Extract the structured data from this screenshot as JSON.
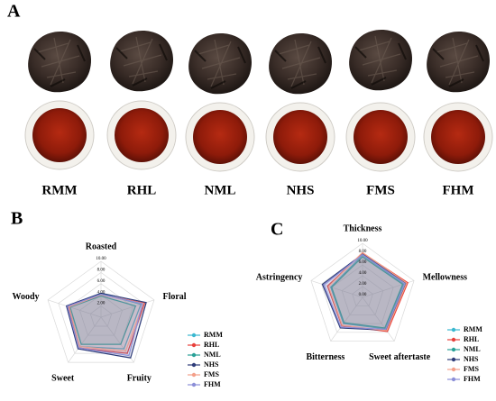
{
  "panel_a": {
    "label": "A",
    "samples": [
      "RMM",
      "RHL",
      "NML",
      "NHS",
      "FMS",
      "FHM"
    ]
  },
  "chart_data": [
    {
      "type": "radar",
      "panel": "B",
      "categories": [
        "Roasted",
        "Floral",
        "Fruity",
        "Sweet",
        "Woody"
      ],
      "ylim": [
        0,
        10
      ],
      "yticks": [
        {
          "value": 2,
          "label": "2.00"
        },
        {
          "value": 4,
          "label": "4.00"
        },
        {
          "value": 6,
          "label": "6.00"
        },
        {
          "value": 8,
          "label": "8.00"
        },
        {
          "value": 10,
          "label": "10.00"
        }
      ],
      "grid": true,
      "legend": "lower right",
      "series": [
        {
          "name": "RMM",
          "color": "#3bb8d0",
          "values": [
            4.2,
            7.5,
            7.0,
            6.5,
            6.0
          ]
        },
        {
          "name": "RHL",
          "color": "#e8413c",
          "values": [
            4.0,
            8.2,
            8.0,
            6.8,
            6.2
          ]
        },
        {
          "name": "NML",
          "color": "#2aa198",
          "values": [
            3.8,
            6.5,
            6.0,
            6.0,
            5.8
          ]
        },
        {
          "name": "NHS",
          "color": "#2f3d7a",
          "values": [
            4.3,
            8.5,
            9.0,
            7.0,
            6.5
          ]
        },
        {
          "name": "FMS",
          "color": "#f4a08a",
          "values": [
            4.0,
            8.0,
            7.5,
            6.5,
            6.0
          ]
        },
        {
          "name": "FHM",
          "color": "#8c8fd8",
          "values": [
            4.1,
            7.8,
            8.5,
            6.8,
            6.3
          ]
        }
      ]
    },
    {
      "type": "radar",
      "panel": "C",
      "categories": [
        "Thickness",
        "Mellowness",
        "Sweet aftertaste",
        "Bitterness",
        "Astringency"
      ],
      "ylim": [
        0,
        10
      ],
      "yticks": [
        {
          "value": 0,
          "label": "0.00"
        },
        {
          "value": 2,
          "label": "2.00"
        },
        {
          "value": 4,
          "label": "4.00"
        },
        {
          "value": 6,
          "label": "6.00"
        },
        {
          "value": 8,
          "label": "8.00"
        },
        {
          "value": 10,
          "label": "10.00"
        }
      ],
      "grid": true,
      "legend": "lower right",
      "series": [
        {
          "name": "RMM",
          "color": "#3bb8d0",
          "values": [
            7.8,
            8.0,
            7.2,
            6.0,
            6.2
          ]
        },
        {
          "name": "RHL",
          "color": "#e8413c",
          "values": [
            8.2,
            8.8,
            7.8,
            6.5,
            6.8
          ]
        },
        {
          "name": "NML",
          "color": "#2aa198",
          "values": [
            7.5,
            7.8,
            7.0,
            5.8,
            6.0
          ]
        },
        {
          "name": "NHS",
          "color": "#2f3d7a",
          "values": [
            8.0,
            8.5,
            7.5,
            7.0,
            7.8
          ]
        },
        {
          "name": "FMS",
          "color": "#f4a08a",
          "values": [
            8.3,
            8.6,
            7.6,
            6.4,
            6.6
          ]
        },
        {
          "name": "FHM",
          "color": "#8c8fd8",
          "values": [
            7.9,
            8.2,
            7.3,
            6.8,
            7.5
          ]
        }
      ]
    }
  ]
}
